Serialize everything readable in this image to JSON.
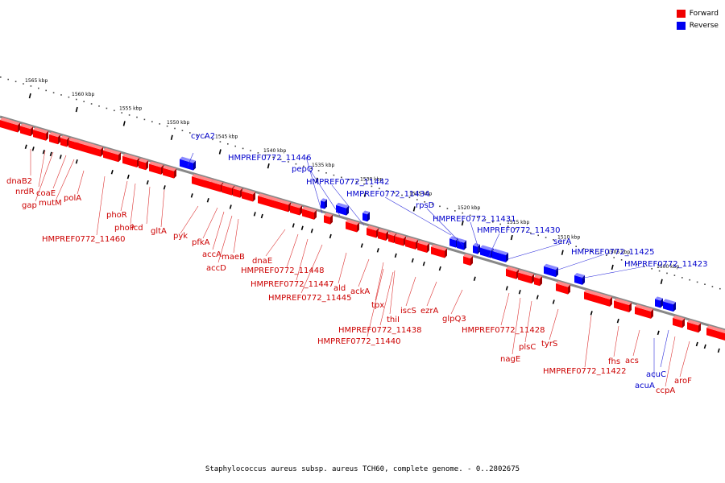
{
  "legend": {
    "forward_label": "Forward",
    "reverse_label": "Reverse",
    "forward_color": "#ff0000",
    "reverse_color": "#0000ff"
  },
  "caption": "Staphylococcus aureus subsp. aureus TCH60, complete genome. - 0..2802675",
  "colors": {
    "forward_label": "#cc0000",
    "reverse_label": "#0000cc",
    "backbone": "#888888"
  },
  "ticks": [
    {
      "label": "1565 kbp"
    },
    {
      "label": "1560 kbp"
    },
    {
      "label": "1555 kbp"
    },
    {
      "label": "1550 kbp"
    },
    {
      "label": "1545 kbp"
    },
    {
      "label": "1540 kbp"
    },
    {
      "label": "1535 kbp"
    },
    {
      "label": "1530 kbp"
    },
    {
      "label": "1525 kbp"
    },
    {
      "label": "1520 kbp"
    },
    {
      "label": "1515 kbp"
    },
    {
      "label": "1510 kbp"
    },
    {
      "label": "1505 kbp"
    },
    {
      "label": "1500 kbp"
    }
  ],
  "genes": {
    "reverse": [
      "cycA2",
      "HMPREF0772_11446",
      "pepQ",
      "HMPREF0772_11442",
      "HMPREF0772_11434",
      "rpsD",
      "HMPREF0772_11431",
      "HMPREF0772_11430",
      "serA",
      "HMPREF0772_11425",
      "HMPREF0772_11423",
      "acuA",
      "acuC"
    ],
    "forward": [
      "dnaB2",
      "nrdR",
      "gap",
      "coaE",
      "mutM",
      "polA",
      "HMPREF0772_11460",
      "phoR",
      "phoP",
      "icd",
      "gltA",
      "pyk",
      "pfkA",
      "accA",
      "accD",
      "maeB",
      "dnaE",
      "HMPREF0772_11448",
      "HMPREF0772_11447",
      "HMPREF0772_11445",
      "ald",
      "ackA",
      "tpx",
      "thiI",
      "HMPREF0772_11438",
      "HMPREF0772_11440",
      "iscS",
      "ezrA",
      "glpQ3",
      "HMPREF0772_11428",
      "nagE",
      "plsC",
      "tyrS",
      "HMPREF0772_11422",
      "fhs",
      "acs",
      "ccpA",
      "aroF"
    ]
  }
}
